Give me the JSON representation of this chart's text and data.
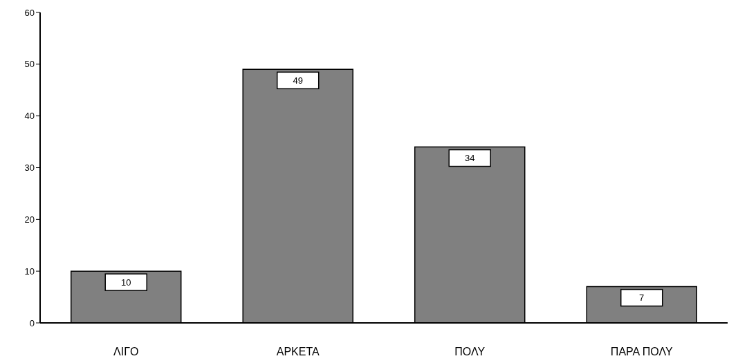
{
  "chart_data": {
    "type": "bar",
    "categories": [
      "ΛΙΓΟ",
      "ΑΡΚΕΤΑ",
      "ΠΟΛΥ",
      "ΠΑΡΑ ΠΟΛΥ"
    ],
    "values": [
      10,
      49,
      34,
      7
    ],
    "color": "#808080",
    "ylim": [
      0,
      60
    ],
    "yticks": [
      0,
      10,
      20,
      30,
      40,
      50,
      60
    ],
    "data_labels": true,
    "grid": false,
    "legend": false
  }
}
